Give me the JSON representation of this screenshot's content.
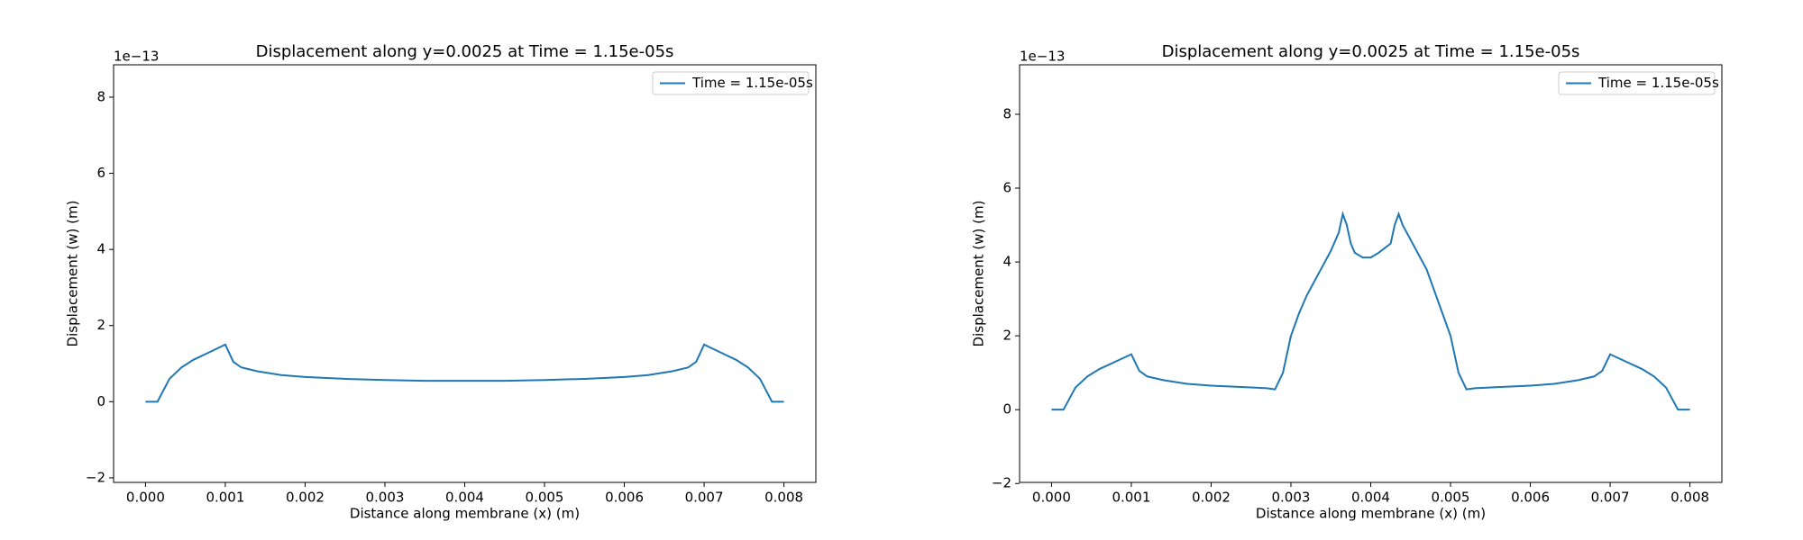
{
  "chart_data": [
    {
      "type": "line",
      "title": "Displacement along y=0.0025 at Time = 1.15e-05s",
      "x_label": "Distance along membrane (x) (m)",
      "y_label": "Displacement (w) (m)",
      "y_offset_label": "1e−13",
      "xlim": [
        -0.0004,
        0.0084
      ],
      "ylim": [
        -2.12,
        8.85
      ],
      "xticks": [
        {
          "value": 0,
          "label": "0.000"
        },
        0.001,
        0.002,
        0.003,
        0.004,
        0.005,
        0.006,
        0.007,
        0.008
      ],
      "yticks": [
        {
          "value": -2,
          "label": "−2"
        },
        0,
        2,
        4,
        6,
        8
      ],
      "legend": "upper right",
      "x": [
        0,
        0.00015,
        0.0003,
        0.00045,
        0.0006,
        0.0008,
        0.001,
        0.0011,
        0.0012,
        0.0014,
        0.0017,
        0.002,
        0.0025,
        0.003,
        0.0035,
        0.004,
        0.0045,
        0.005,
        0.0055,
        0.006,
        0.0063,
        0.0066,
        0.0068,
        0.0069,
        0.007,
        0.0072,
        0.0074,
        0.00755,
        0.0077,
        0.00785,
        0.008
      ],
      "series": [
        {
          "name": "Time = 1.15e-05s",
          "color": "#1f77b4",
          "values": [
            0,
            0,
            0.6,
            0.9,
            1.1,
            1.3,
            1.5,
            1.05,
            0.9,
            0.8,
            0.7,
            0.65,
            0.6,
            0.57,
            0.55,
            0.55,
            0.55,
            0.57,
            0.6,
            0.65,
            0.7,
            0.8,
            0.9,
            1.05,
            1.5,
            1.3,
            1.1,
            0.9,
            0.6,
            0,
            0
          ]
        }
      ]
    },
    {
      "type": "line",
      "title": "Displacement along y=0.0025 at Time = 1.15e-05s",
      "x_label": "Distance along membrane (x) (m)",
      "y_label": "Displacement (w) (m)",
      "y_offset_label": "1e−13",
      "xlim": [
        -0.0004,
        0.0084
      ],
      "ylim": [
        -1.97,
        9.34
      ],
      "xticks": [
        {
          "value": 0,
          "label": "0.000"
        },
        0.001,
        0.002,
        0.003,
        0.004,
        0.005,
        0.006,
        0.007,
        0.008
      ],
      "yticks": [
        {
          "value": -2,
          "label": "−2"
        },
        0,
        2,
        4,
        6,
        8
      ],
      "legend": "upper right",
      "x": [
        0,
        0.00015,
        0.0003,
        0.00045,
        0.0006,
        0.0008,
        0.001,
        0.0011,
        0.0012,
        0.0014,
        0.0017,
        0.002,
        0.0025,
        0.0027,
        0.0028,
        0.0029,
        0.003,
        0.0031,
        0.0032,
        0.0034,
        0.0035,
        0.0036,
        0.00365,
        0.0037,
        0.00375,
        0.0038,
        0.0039,
        0.004,
        0.0041,
        0.00425,
        0.0043,
        0.00435,
        0.0044,
        0.0045,
        0.0046,
        0.0047,
        0.0048,
        0.0049,
        0.005,
        0.0051,
        0.0052,
        0.0053,
        0.0055,
        0.006,
        0.0063,
        0.0066,
        0.0068,
        0.0069,
        0.007,
        0.0072,
        0.0074,
        0.00755,
        0.0077,
        0.00785,
        0.008
      ],
      "series": [
        {
          "name": "Time = 1.15e-05s",
          "color": "#1f77b4",
          "values": [
            0,
            0,
            0.6,
            0.9,
            1.1,
            1.3,
            1.5,
            1.05,
            0.9,
            0.8,
            0.7,
            0.65,
            0.6,
            0.58,
            0.55,
            1.0,
            2.0,
            2.6,
            3.1,
            3.9,
            4.3,
            4.8,
            5.3,
            5.0,
            4.5,
            4.25,
            4.12,
            4.12,
            4.25,
            4.5,
            5.0,
            5.3,
            5.0,
            4.6,
            4.2,
            3.8,
            3.2,
            2.6,
            2.0,
            1.0,
            0.55,
            0.58,
            0.6,
            0.65,
            0.7,
            0.8,
            0.9,
            1.05,
            1.5,
            1.3,
            1.1,
            0.9,
            0.6,
            0,
            0
          ]
        }
      ]
    }
  ]
}
